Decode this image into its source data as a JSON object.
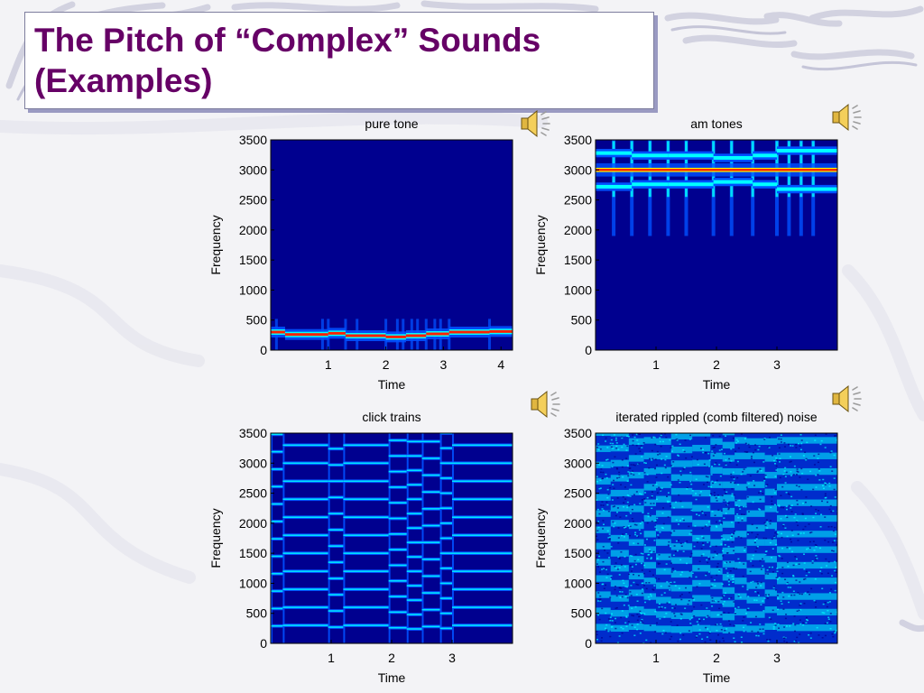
{
  "slide": {
    "title_line1": "The Pitch of “Complex” Sounds",
    "title_line2": "(Examples)",
    "title_color": "#660066"
  },
  "speaker_icon": "speaker-sound-icon",
  "colormap": [
    "#00008f",
    "#0050ff",
    "#00ffff",
    "#ffff00",
    "#ff2000"
  ],
  "chart_data": [
    {
      "type": "heatmap",
      "title": "pure tone",
      "xlabel": "Time",
      "ylabel": "Frequency",
      "ylim": [
        0,
        3500
      ],
      "yticks": [
        "0",
        "500",
        "1000",
        "1500",
        "2000",
        "2500",
        "3000",
        "3500"
      ],
      "xlim": [
        0,
        4.2
      ],
      "xticks": [
        "1",
        "2",
        "3",
        "4"
      ],
      "segments": [
        {
          "x0": 0.0,
          "x1": 0.25,
          "f": 300
        },
        {
          "x0": 0.25,
          "x1": 1.0,
          "f": 260
        },
        {
          "x0": 1.0,
          "x1": 1.3,
          "f": 280
        },
        {
          "x0": 1.3,
          "x1": 2.0,
          "f": 240
        },
        {
          "x0": 2.0,
          "x1": 2.35,
          "f": 220
        },
        {
          "x0": 2.35,
          "x1": 2.7,
          "f": 240
        },
        {
          "x0": 2.7,
          "x1": 3.1,
          "f": 270
        },
        {
          "x0": 3.1,
          "x1": 3.8,
          "f": 300
        },
        {
          "x0": 3.8,
          "x1": 4.2,
          "f": 310
        }
      ],
      "onsets": [
        0.1,
        0.9,
        1.0,
        1.3,
        1.5,
        2.0,
        2.2,
        2.3,
        2.45,
        2.55,
        2.7,
        2.85,
        2.95,
        3.1,
        3.8
      ]
    },
    {
      "type": "heatmap",
      "title": "am tones",
      "xlabel": "Time",
      "ylabel": "Frequency",
      "ylim": [
        0,
        3500
      ],
      "yticks": [
        "0",
        "500",
        "1000",
        "1500",
        "2000",
        "2500",
        "3000",
        "3500"
      ],
      "xlim": [
        0,
        4
      ],
      "xticks": [
        "1",
        "2",
        "3"
      ],
      "carrier_hz": 3000,
      "segments": [
        {
          "x0": 0.0,
          "x1": 0.6,
          "lower": 2720,
          "upper": 3280
        },
        {
          "x0": 0.6,
          "x1": 1.2,
          "lower": 2760,
          "upper": 3240
        },
        {
          "x0": 1.2,
          "x1": 1.95,
          "lower": 2760,
          "upper": 3240
        },
        {
          "x0": 1.95,
          "x1": 2.6,
          "lower": 2800,
          "upper": 3200
        },
        {
          "x0": 2.6,
          "x1": 3.0,
          "lower": 2760,
          "upper": 3240
        },
        {
          "x0": 3.0,
          "x1": 4.0,
          "lower": 2680,
          "upper": 3320
        }
      ],
      "onsets": [
        0.3,
        0.6,
        0.9,
        1.2,
        1.5,
        1.95,
        2.25,
        2.6,
        3.0,
        3.2,
        3.4,
        3.6
      ]
    },
    {
      "type": "heatmap",
      "title": "click trains",
      "xlabel": "Time",
      "ylabel": "Frequency",
      "ylim": [
        0,
        3500
      ],
      "yticks": [
        "0",
        "500",
        "1000",
        "1500",
        "2000",
        "2500",
        "3000",
        "3500"
      ],
      "xlim": [
        0,
        4
      ],
      "xticks": [
        "1",
        "2",
        "3"
      ],
      "segments": [
        {
          "x0": 0.0,
          "x1": 0.2,
          "f0": 290
        },
        {
          "x0": 0.2,
          "x1": 0.95,
          "f0": 300
        },
        {
          "x0": 0.95,
          "x1": 1.2,
          "f0": 270
        },
        {
          "x0": 1.2,
          "x1": 1.95,
          "f0": 300
        },
        {
          "x0": 1.95,
          "x1": 2.25,
          "f0": 260
        },
        {
          "x0": 2.25,
          "x1": 2.5,
          "f0": 240
        },
        {
          "x0": 2.5,
          "x1": 2.8,
          "f0": 280
        },
        {
          "x0": 2.8,
          "x1": 3.0,
          "f0": 250
        },
        {
          "x0": 3.0,
          "x1": 4.0,
          "f0": 300
        }
      ]
    },
    {
      "type": "heatmap",
      "title": "iterated rippled (comb filtered) noise",
      "xlabel": "Time",
      "ylabel": "Frequency",
      "ylim": [
        0,
        3500
      ],
      "yticks": [
        "0",
        "500",
        "1000",
        "1500",
        "2000",
        "2500",
        "3000",
        "3500"
      ],
      "xlim": [
        0,
        4
      ],
      "xticks": [
        "1",
        "2",
        "3"
      ],
      "segments": [
        {
          "x0": 0.0,
          "x1": 0.25,
          "f0": 270
        },
        {
          "x0": 0.25,
          "x1": 0.55,
          "f0": 250
        },
        {
          "x0": 0.55,
          "x1": 0.8,
          "f0": 280
        },
        {
          "x0": 0.8,
          "x1": 1.0,
          "f0": 260
        },
        {
          "x0": 1.0,
          "x1": 1.25,
          "f0": 240
        },
        {
          "x0": 1.25,
          "x1": 1.6,
          "f0": 230
        },
        {
          "x0": 1.6,
          "x1": 1.9,
          "f0": 250
        },
        {
          "x0": 1.9,
          "x1": 2.1,
          "f0": 240
        },
        {
          "x0": 2.1,
          "x1": 2.3,
          "f0": 220
        },
        {
          "x0": 2.3,
          "x1": 2.5,
          "f0": 260
        },
        {
          "x0": 2.5,
          "x1": 2.8,
          "f0": 240
        },
        {
          "x0": 2.8,
          "x1": 3.0,
          "f0": 280
        },
        {
          "x0": 3.0,
          "x1": 4.0,
          "f0": 260
        }
      ]
    }
  ]
}
